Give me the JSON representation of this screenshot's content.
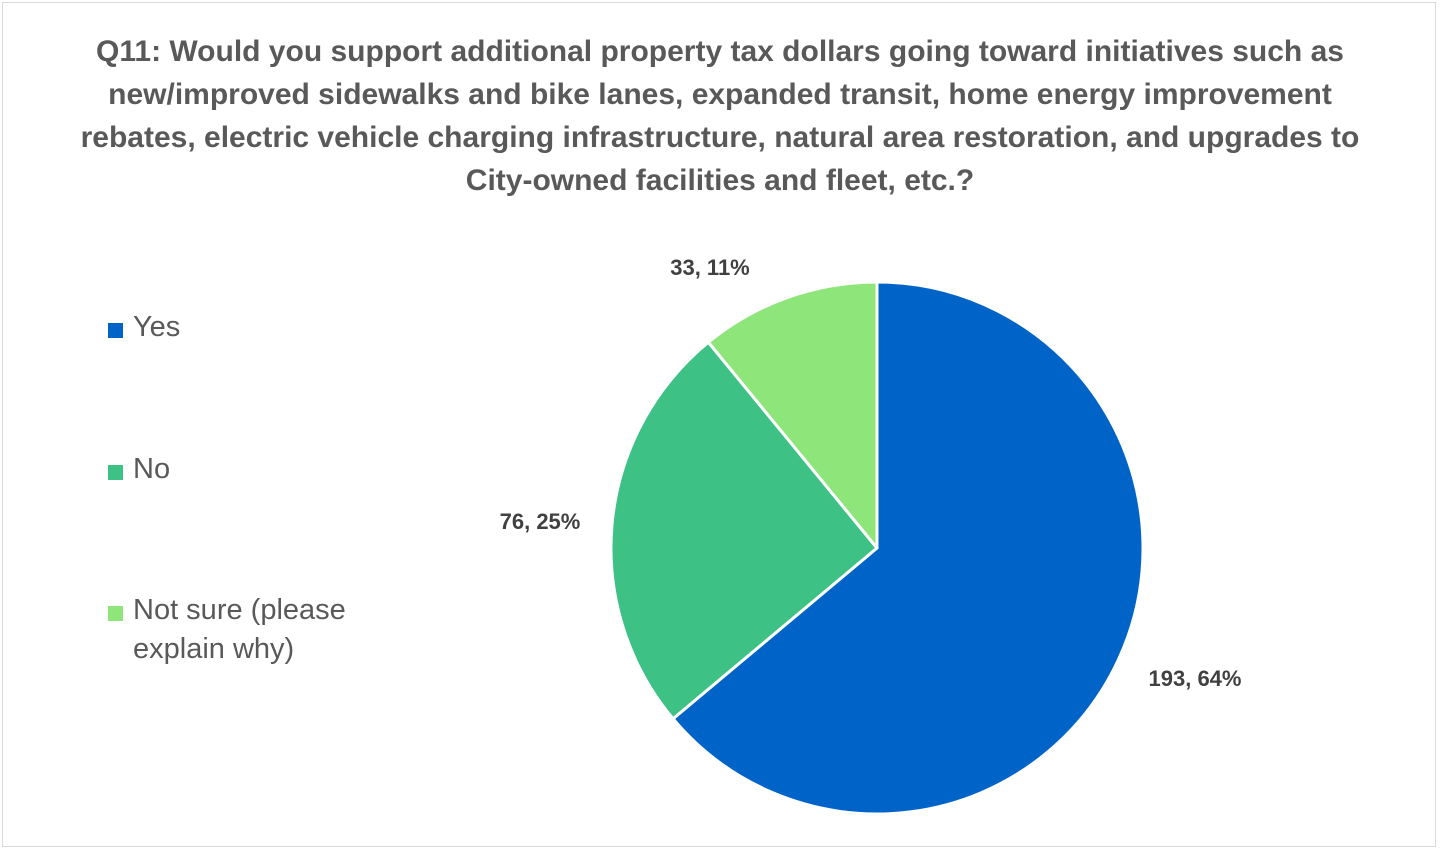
{
  "chart_data": {
    "type": "pie",
    "title": "Q11: Would you support additional property tax dollars going toward initiatives such as new/improved sidewalks and bike lanes, expanded transit, home energy improvement rebates, electric vehicle charging infrastructure, natural area restoration, and upgrades to City-owned facilities and fleet, etc.?",
    "legend_position": "left",
    "slices": [
      {
        "label": "Yes",
        "value": 193,
        "percent": "64%",
        "data_label": "193, 64%",
        "color": "#0063c8"
      },
      {
        "label": "No",
        "value": 76,
        "percent": "25%",
        "data_label": "76, 25%",
        "color": "#3dc184"
      },
      {
        "label": "Not sure (please explain why)",
        "value": 33,
        "percent": "11%",
        "data_label": "33, 11%",
        "color": "#8ee67b"
      }
    ]
  }
}
